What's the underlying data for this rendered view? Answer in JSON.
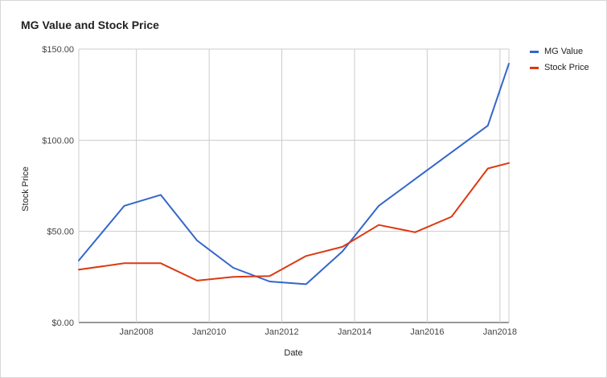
{
  "chart_data": {
    "type": "line",
    "title": "MG Value and Stock Price",
    "xlabel": "Date",
    "ylabel": "Stock Price",
    "x_range": [
      "2006-06-01",
      "2018-04-01"
    ],
    "x_ticks": [
      "2008-01-01",
      "2010-01-01",
      "2012-01-01",
      "2014-01-01",
      "2016-01-01",
      "2018-01-01"
    ],
    "x_tick_labels": [
      "Jan2008",
      "Jan2010",
      "Jan2012",
      "Jan2014",
      "Jan2016",
      "Jan2018"
    ],
    "ylim": [
      0,
      150
    ],
    "y_ticks": [
      0,
      50,
      100,
      150
    ],
    "y_tick_labels": [
      "$0.00",
      "$50.00",
      "$100.00",
      "$150.00"
    ],
    "grid": true,
    "legend_position": "right",
    "series": [
      {
        "name": "MG Value",
        "color": "#3366cc",
        "points": [
          {
            "x": "2006-06-01",
            "y": 34
          },
          {
            "x": "2007-09-01",
            "y": 64
          },
          {
            "x": "2008-09-01",
            "y": 70
          },
          {
            "x": "2009-09-01",
            "y": 45
          },
          {
            "x": "2010-09-01",
            "y": 30
          },
          {
            "x": "2011-09-01",
            "y": 22.5
          },
          {
            "x": "2012-09-01",
            "y": 21
          },
          {
            "x": "2013-09-01",
            "y": 39
          },
          {
            "x": "2014-09-01",
            "y": 64
          },
          {
            "x": "2017-09-01",
            "y": 108
          },
          {
            "x": "2018-04-01",
            "y": 142
          }
        ]
      },
      {
        "name": "Stock Price",
        "color": "#dc3912",
        "points": [
          {
            "x": "2006-06-01",
            "y": 29
          },
          {
            "x": "2007-09-01",
            "y": 32.5
          },
          {
            "x": "2008-09-01",
            "y": 32.5
          },
          {
            "x": "2009-09-01",
            "y": 23
          },
          {
            "x": "2010-09-01",
            "y": 25
          },
          {
            "x": "2011-09-01",
            "y": 25.5
          },
          {
            "x": "2012-09-01",
            "y": 36.5
          },
          {
            "x": "2013-09-01",
            "y": 41.5
          },
          {
            "x": "2014-09-01",
            "y": 53.5
          },
          {
            "x": "2015-09-01",
            "y": 49.5
          },
          {
            "x": "2016-09-01",
            "y": 58
          },
          {
            "x": "2017-09-01",
            "y": 84.5
          },
          {
            "x": "2018-04-01",
            "y": 87.5
          }
        ]
      }
    ]
  }
}
